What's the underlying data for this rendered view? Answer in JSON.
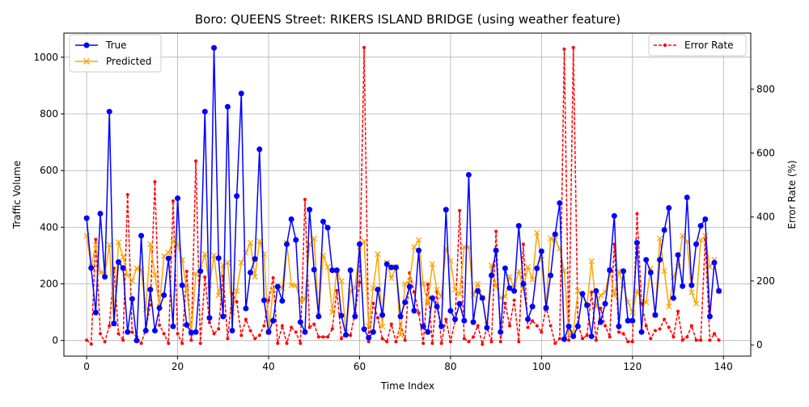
{
  "chart_data": {
    "type": "line",
    "title": "Boro: QUEENS Street: RIKERS ISLAND BRIDGE (using weather feature)",
    "xlabel": "Time Index",
    "ylabel": "Traffic Volume",
    "y2label": "Error Rate (%)",
    "xlim": [
      -5,
      146
    ],
    "ylim": [
      -55,
      1085
    ],
    "y2lim": [
      -35,
      975
    ],
    "xticks": [
      0,
      20,
      40,
      60,
      80,
      100,
      120,
      140
    ],
    "yticks": [
      0,
      200,
      400,
      600,
      800,
      1000
    ],
    "y2ticks": [
      0,
      200,
      400,
      600,
      800
    ],
    "grid": true,
    "legend_left": "upper-left",
    "legend_right": "upper-right",
    "colors": {
      "true": "#0000ff",
      "predicted": "#ffa500",
      "error": "#ff0000"
    },
    "series": [
      {
        "name": "True",
        "axis": "left",
        "marker": "circle",
        "values": [
          432,
          256,
          99,
          448,
          225,
          808,
          60,
          277,
          256,
          30,
          147,
          0,
          370,
          35,
          180,
          35,
          115,
          160,
          290,
          50,
          502,
          195,
          55,
          28,
          30,
          245,
          808,
          80,
          1033,
          291,
          85,
          825,
          35,
          510,
          872,
          113,
          240,
          288,
          675,
          142,
          30,
          70,
          190,
          140,
          340,
          428,
          355,
          65,
          30,
          462,
          250,
          85,
          420,
          398,
          248,
          248,
          88,
          20,
          248,
          85,
          340,
          40,
          10,
          30,
          180,
          90,
          270,
          258,
          258,
          85,
          135,
          190,
          105,
          318,
          50,
          30,
          150,
          120,
          50,
          462,
          105,
          75,
          130,
          70,
          585,
          65,
          175,
          150,
          45,
          230,
          318,
          30,
          255,
          185,
          175,
          405,
          200,
          75,
          120,
          255,
          315,
          115,
          230,
          375,
          485,
          5,
          50,
          15,
          50,
          165,
          125,
          15,
          175,
          65,
          130,
          248,
          440,
          50,
          245,
          70,
          70,
          345,
          30,
          285,
          240,
          90,
          285,
          390,
          468,
          150,
          302,
          192,
          505,
          195,
          340,
          405,
          428,
          85,
          275,
          175
        ]
      },
      {
        "name": "Predicted",
        "axis": "left",
        "marker": "x",
        "values": [
          370,
          262,
          338,
          240,
          235,
          338,
          60,
          347,
          295,
          230,
          210,
          255,
          250,
          110,
          340,
          232,
          120,
          298,
          310,
          350,
          340,
          285,
          180,
          25,
          235,
          255,
          305,
          195,
          300,
          160,
          265,
          275,
          100,
          175,
          275,
          310,
          345,
          225,
          350,
          305,
          30,
          180,
          195,
          185,
          345,
          195,
          195,
          140,
          145,
          340,
          360,
          90,
          300,
          260,
          100,
          245,
          210,
          30,
          175,
          185,
          330,
          350,
          50,
          185,
          305,
          50,
          275,
          220,
          260,
          20,
          200,
          210,
          330,
          355,
          200,
          130,
          270,
          180,
          155,
          325,
          280,
          180,
          165,
          330,
          330,
          160,
          200,
          150,
          55,
          265,
          195,
          150,
          155,
          225,
          185,
          245,
          180,
          260,
          215,
          380,
          285,
          115,
          360,
          355,
          325,
          245,
          20,
          30,
          175,
          160,
          125,
          280,
          120,
          160,
          170,
          250,
          160,
          245,
          195,
          135,
          100,
          175,
          140,
          135,
          255,
          90,
          360,
          245,
          120,
          225,
          260,
          370,
          350,
          170,
          130,
          355,
          370,
          260,
          285,
          175
        ]
      },
      {
        "name": "Error Rate",
        "axis": "right",
        "marker": "dot",
        "values": [
          15,
          3,
          330,
          35,
          10,
          60,
          240,
          35,
          15,
          470,
          40,
          25,
          5,
          50,
          125,
          510,
          62,
          35,
          5,
          450,
          35,
          5,
          230,
          15,
          575,
          5,
          212,
          70,
          35,
          50,
          215,
          20,
          160,
          135,
          30,
          80,
          45,
          20,
          30,
          60,
          140,
          210,
          5,
          60,
          5,
          55,
          40,
          5,
          455,
          55,
          65,
          25,
          25,
          25,
          50,
          170,
          20,
          35,
          30,
          100,
          195,
          930,
          10,
          130,
          85,
          20,
          10,
          65,
          10,
          65,
          15,
          225,
          165,
          100,
          5,
          190,
          5,
          170,
          5,
          80,
          10,
          75,
          420,
          20,
          10,
          25,
          60,
          2,
          55,
          10,
          355,
          10,
          130,
          60,
          140,
          10,
          315,
          55,
          75,
          60,
          40,
          120,
          60,
          5,
          20,
          925,
          15,
          930,
          65,
          20,
          30,
          165,
          15,
          115,
          60,
          25,
          315,
          40,
          35,
          10,
          10,
          410,
          130,
          60,
          20,
          45,
          50,
          80,
          55,
          25,
          105,
          15,
          25,
          60,
          15,
          15,
          330,
          15,
          35,
          15
        ]
      }
    ]
  }
}
